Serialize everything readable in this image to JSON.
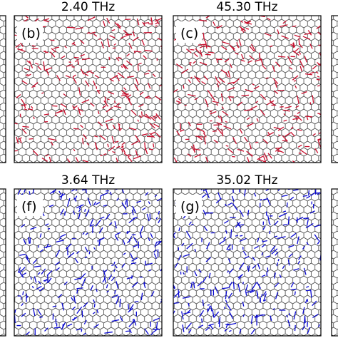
{
  "panels": [
    {
      "title": "2.40 THz",
      "label": "(b)"
    },
    {
      "title": "45.30 THz",
      "label": "(c)"
    },
    {
      "title": "3.64 THz",
      "label": "(f)"
    },
    {
      "title": "35.02 THz",
      "label": "(g)"
    }
  ]
}
